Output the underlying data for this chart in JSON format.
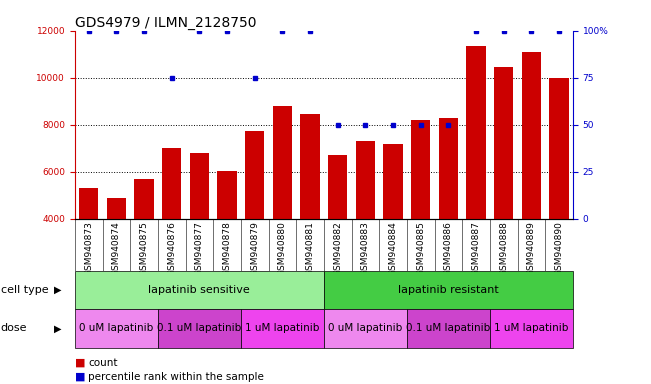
{
  "title": "GDS4979 / ILMN_2128750",
  "samples": [
    "GSM940873",
    "GSM940874",
    "GSM940875",
    "GSM940876",
    "GSM940877",
    "GSM940878",
    "GSM940879",
    "GSM940880",
    "GSM940881",
    "GSM940882",
    "GSM940883",
    "GSM940884",
    "GSM940885",
    "GSM940886",
    "GSM940887",
    "GSM940888",
    "GSM940889",
    "GSM940890"
  ],
  "counts": [
    5300,
    4900,
    5700,
    7000,
    6800,
    6050,
    7750,
    8800,
    8450,
    6700,
    7300,
    7200,
    8200,
    8300,
    11350,
    10450,
    11100,
    10000
  ],
  "percentile_ranks": [
    100,
    100,
    100,
    75,
    100,
    100,
    75,
    100,
    100,
    50,
    50,
    50,
    50,
    50,
    100,
    100,
    100,
    100
  ],
  "bar_color": "#cc0000",
  "dot_color": "#0000cc",
  "ylim_left": [
    4000,
    12000
  ],
  "ylim_right": [
    0,
    100
  ],
  "yticks_left": [
    4000,
    6000,
    8000,
    10000,
    12000
  ],
  "yticks_right": [
    0,
    25,
    50,
    75,
    100
  ],
  "cell_type_groups": [
    {
      "label": "lapatinib sensitive",
      "start": 0,
      "end": 9,
      "color": "#99ee99"
    },
    {
      "label": "lapatinib resistant",
      "start": 9,
      "end": 18,
      "color": "#44cc44"
    }
  ],
  "dose_groups": [
    {
      "label": "0 uM lapatinib",
      "start": 0,
      "end": 3,
      "color": "#ee88ee"
    },
    {
      "label": "0.1 uM lapatinib",
      "start": 3,
      "end": 6,
      "color": "#cc44cc"
    },
    {
      "label": "1 uM lapatinib",
      "start": 6,
      "end": 9,
      "color": "#ee44ee"
    },
    {
      "label": "0 uM lapatinib",
      "start": 9,
      "end": 12,
      "color": "#ee88ee"
    },
    {
      "label": "0.1 uM lapatinib",
      "start": 12,
      "end": 15,
      "color": "#cc44cc"
    },
    {
      "label": "1 uM lapatinib",
      "start": 15,
      "end": 18,
      "color": "#ee44ee"
    }
  ],
  "legend_count_label": "count",
  "legend_pct_label": "percentile rank within the sample",
  "cell_type_label": "cell type",
  "dose_label": "dose",
  "background_color": "#ffffff",
  "title_fontsize": 10,
  "tick_fontsize": 6.5,
  "label_fontsize": 8,
  "row_fontsize": 8
}
